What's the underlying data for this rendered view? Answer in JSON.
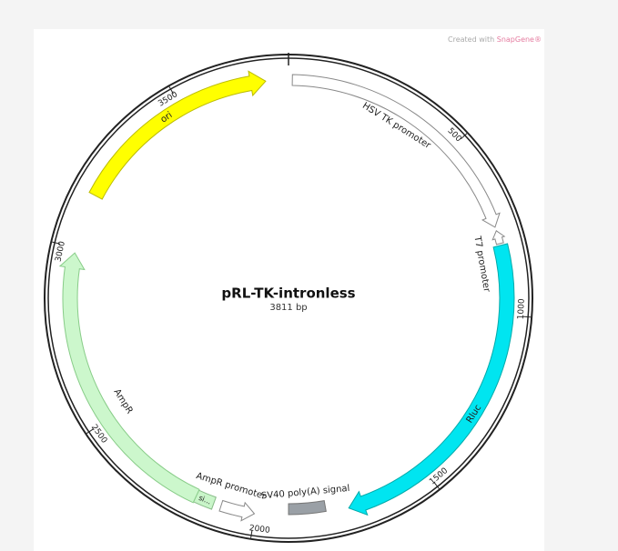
{
  "title": "pRL-TK-intronless",
  "size": {
    "value": 3811,
    "label": "3811 bp"
  },
  "watermark": {
    "prefix": "Created with",
    "brand": "SnapGene®"
  },
  "ticks": [
    500,
    1000,
    1500,
    2000,
    2500,
    3000,
    3500
  ],
  "features": [
    {
      "label": "HSV TK promoter"
    },
    {
      "label": "T7 promoter"
    },
    {
      "label": "Rluc"
    },
    {
      "label": "SV40 poly(A) signal"
    },
    {
      "label": "AmpR promoter"
    },
    {
      "label": "si..."
    },
    {
      "label": "AmpR"
    },
    {
      "label": "ori"
    }
  ]
}
